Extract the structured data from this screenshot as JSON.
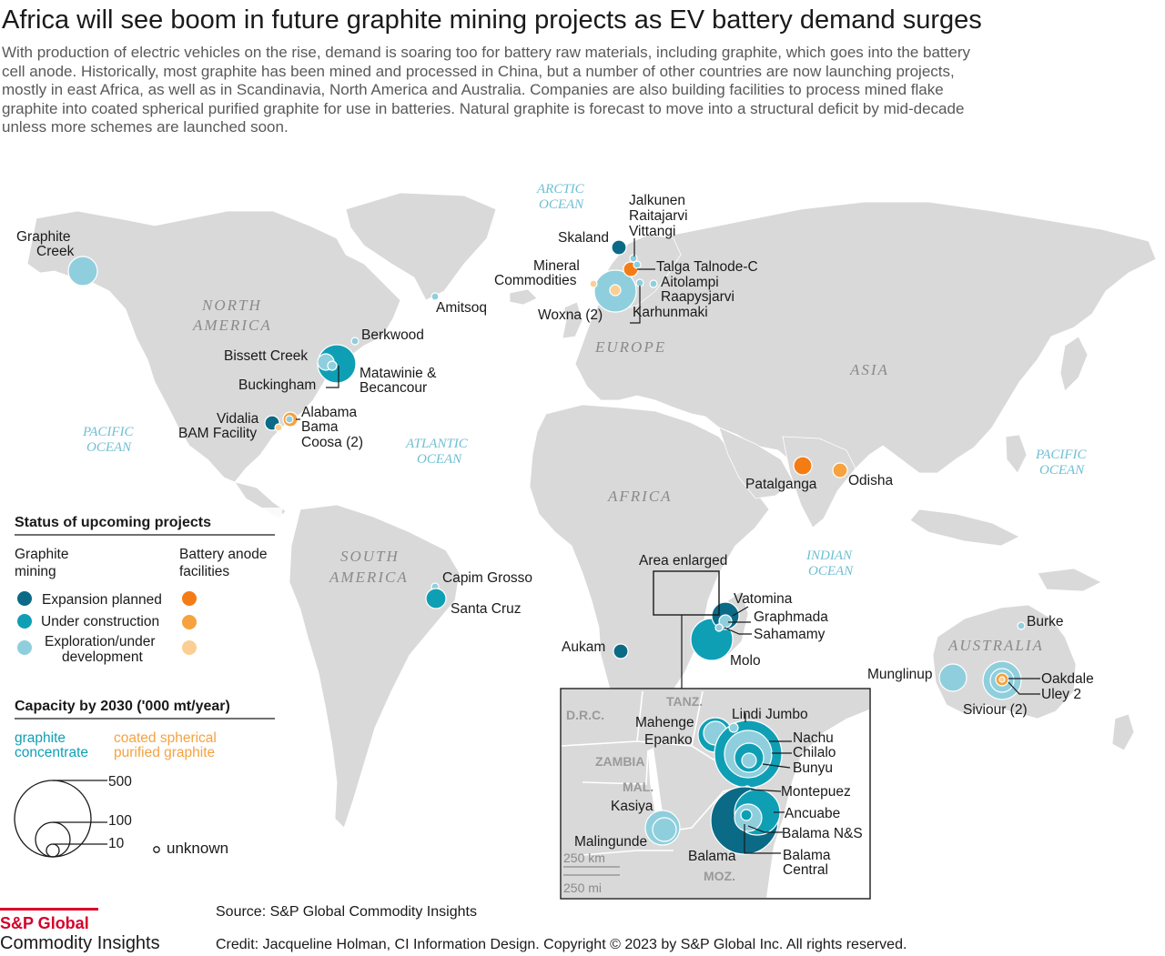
{
  "title": "Africa will see boom in future graphite mining projects as EV battery demand surges",
  "subtitle": "With production of electric vehicles on the rise, demand is soaring too for battery raw materials, including graphite, which goes into the battery cell anode. Historically, most graphite has been mined and processed in China, but a number of other countries are now launching projects, mostly in east Africa, as well as in Scandinavia, North America and Australia. Companies are also building facilities to process mined flake graphite into coated spherical purified graphite for use in batteries. Natural graphite is forecast to move into a structural deficit by mid-decade unless more schemes are launched soon.",
  "colors": {
    "expansion_planned": "#0b6a86",
    "under_construction": "#0f9fb5",
    "exploration": "#8fcfdd",
    "anode_expansion": "#f47c14",
    "anode_construction": "#f5a23f",
    "anode_exploration": "#fbcf93",
    "land": "#d9d9d9",
    "ocean_label": "#6fbfd3"
  },
  "regions": [
    "NORTH AMERICA",
    "EUROPE",
    "ASIA",
    "AFRICA",
    "SOUTH AMERICA",
    "AUSTRALIA"
  ],
  "oceans": {
    "arctic": [
      "ARCTIC",
      "OCEAN"
    ],
    "pacific_w": [
      "PACIFIC",
      "OCEAN"
    ],
    "atlantic": [
      "ATLANTIC",
      "OCEAN"
    ],
    "indian": [
      "INDIAN",
      "OCEAN"
    ],
    "pacific_e": [
      "PACIFIC",
      "OCEAN"
    ]
  },
  "project_labels": {
    "graphite_creek": [
      "Graphite",
      "Creek"
    ],
    "amitsoq": "Amitsoq",
    "berkwood": "Berkwood",
    "bissett_creek": "Bissett Creek",
    "matawinie": [
      "Matawinie &",
      "Becancour"
    ],
    "buckingham": "Buckingham",
    "vidalia": "Vidalia",
    "bam_facility": "BAM Facility",
    "alabama": [
      "Alabama",
      "Bama",
      "Coosa (2)"
    ],
    "jalkunen": [
      "Jalkunen",
      "Raitajarvi",
      "Vittangi"
    ],
    "skaland": "Skaland",
    "mineral_commodities": [
      "Mineral",
      "Commodities"
    ],
    "talga": "Talga Talnode-C",
    "aitolampi": [
      "Aitolampi",
      "Raapysjarvi"
    ],
    "woxna": "Woxna (2)",
    "karhunmaki": "Karhunmaki",
    "patalganga": "Patalganga",
    "odisha": "Odisha",
    "capim_grosso": "Capim Grosso",
    "santa_cruz": "Santa Cruz",
    "aukam": "Aukam",
    "area_enlarged": "Area enlarged",
    "vatomina": "Vatomina",
    "graphmada": "Graphmada",
    "sahamamy": "Sahamamy",
    "molo": "Molo",
    "burke": "Burke",
    "munglinup": "Munglinup",
    "oakdale": "Oakdale",
    "uley": "Uley 2",
    "siviour": "Siviour (2)"
  },
  "inset": {
    "countries": [
      "D.R.C.",
      "TANZ.",
      "ZAMBIA",
      "MAL.",
      "MOZ."
    ],
    "labels": {
      "lindi_jumbo": "Lindi Jumbo",
      "mahenge": "Mahenge",
      "epanko": "Epanko",
      "nachu": "Nachu",
      "chilalo": "Chilalo",
      "bunyu": "Bunyu",
      "montepuez": "Montepuez",
      "ancuabe": "Ancuabe",
      "balama_ns": "Balama N&S",
      "kasiya": "Kasiya",
      "malingunde": "Malingunde",
      "balama": "Balama",
      "balama_central": [
        "Balama",
        "Central"
      ]
    },
    "scale_km": "250 km",
    "scale_mi": "250 mi"
  },
  "legend": {
    "status_title": "Status of upcoming projects",
    "mining_header": [
      "Graphite",
      "mining"
    ],
    "anode_header": [
      "Battery anode",
      "facilities"
    ],
    "statuses": [
      "Expansion planned",
      "Under construction",
      [
        "Exploration/under",
        "development"
      ]
    ],
    "capacity_title": "Capacity by 2030 ('000 mt/year)",
    "graphite_concentrate": [
      "graphite",
      "concentrate"
    ],
    "coated_spherical": [
      "coated spherical",
      "purified graphite"
    ],
    "sizes": [
      "500",
      "100",
      "10"
    ],
    "unknown": "unknown"
  },
  "footer": {
    "source": "Source: S&P Global Commodity Insights",
    "credit": "Credit: Jacqueline Holman, CI Information Design.  Copyright © 2023  by S&P Global Inc. All rights reserved.",
    "brand_name": "S&P Global",
    "brand_sub": "Commodity Insights"
  }
}
